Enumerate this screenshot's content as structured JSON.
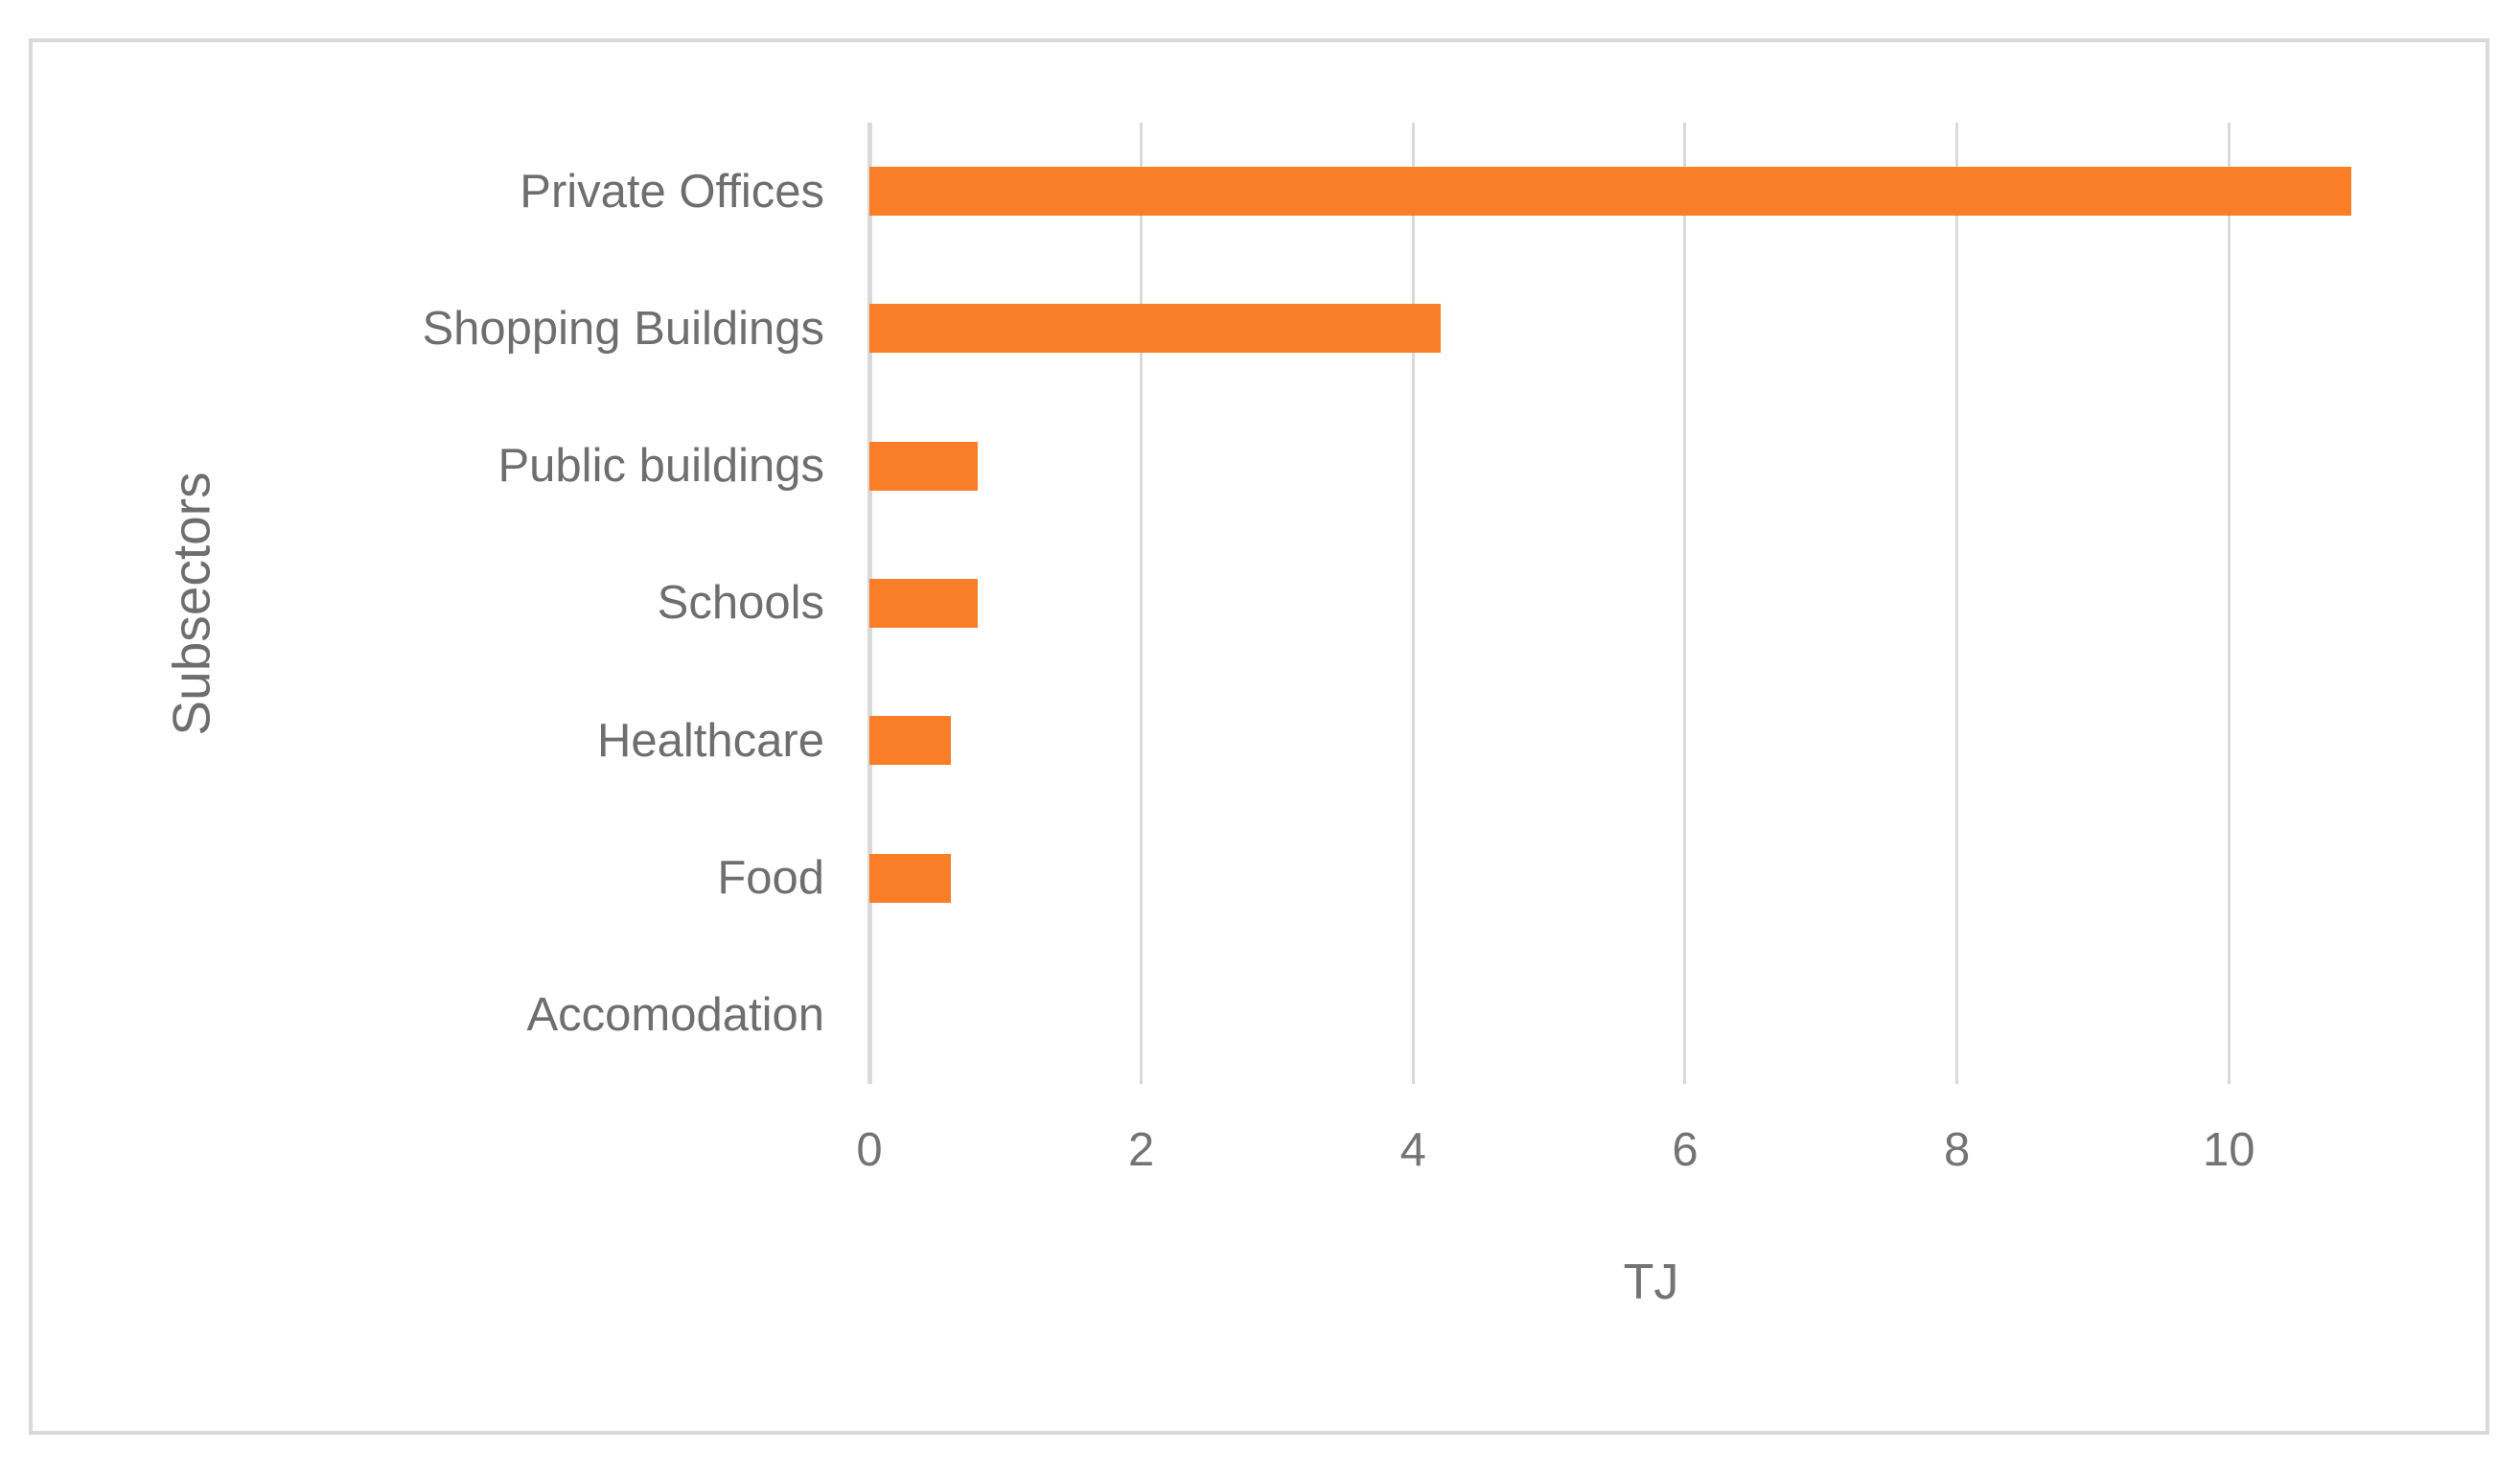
{
  "chart_data": {
    "type": "bar",
    "orientation": "horizontal",
    "title": "",
    "xlabel": "TJ",
    "ylabel": "Subsectors",
    "categories": [
      "Private Offices",
      "Shopping Buildings",
      "Public buildings",
      "Schools",
      "Healthcare",
      "Food",
      "Accomodation"
    ],
    "values": [
      10.9,
      4.2,
      0.8,
      0.8,
      0.6,
      0.6,
      0
    ],
    "xticks": [
      0,
      2,
      4,
      6,
      8,
      10
    ],
    "xlim": [
      0,
      11.5
    ],
    "grid": "vertical-only",
    "legend": "none",
    "bar_color": "#FA7D27",
    "text_color": "#6E6E6E",
    "tick_text_color": "#737373",
    "gridline_color": "#D9D9D9",
    "frame_color": "#D9D9D9",
    "background_color": "#FFFFFF"
  }
}
